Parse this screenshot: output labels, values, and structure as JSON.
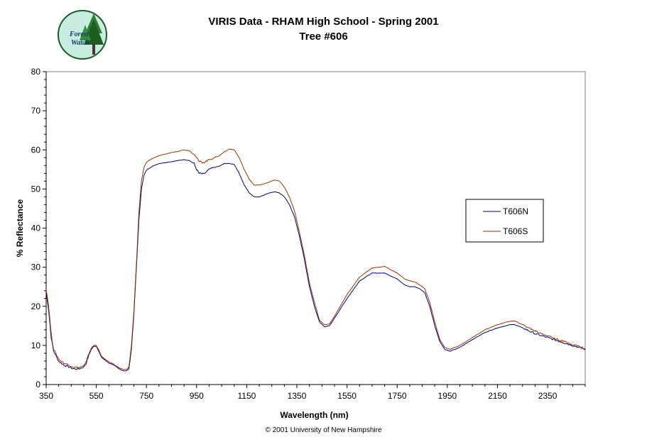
{
  "logo": {
    "line1": "Forest",
    "line2": "Watch"
  },
  "title_line1": "VIRIS Data -  RHAM High School - Spring 2001",
  "title_line2": "Tree #606",
  "copyright": "© 2001 University of New Hampshire",
  "chart_data": {
    "type": "line",
    "title": "VIRIS Data -  RHAM High School - Spring 2001",
    "subtitle": "Tree #606",
    "xlabel": "Wavelength (nm)",
    "ylabel": "% Reflectance",
    "xlim": [
      350,
      2500
    ],
    "ylim": [
      0,
      80
    ],
    "xticks": [
      350,
      550,
      750,
      950,
      1150,
      1350,
      1550,
      1750,
      1950,
      2150,
      2350
    ],
    "yticks": [
      0,
      10,
      20,
      30,
      40,
      50,
      60,
      70,
      80
    ],
    "grid": false,
    "legend": "right",
    "series": [
      {
        "name": "T606N",
        "color": "#000080",
        "x": [
          350,
          360,
          370,
          380,
          400,
          420,
          440,
          460,
          480,
          500,
          510,
          520,
          530,
          540,
          550,
          560,
          570,
          580,
          600,
          620,
          640,
          660,
          670,
          680,
          690,
          700,
          710,
          720,
          730,
          740,
          750,
          760,
          780,
          800,
          850,
          900,
          920,
          940,
          950,
          960,
          980,
          1000,
          1020,
          1040,
          1060,
          1080,
          1100,
          1120,
          1140,
          1160,
          1180,
          1200,
          1220,
          1240,
          1260,
          1280,
          1300,
          1320,
          1340,
          1360,
          1380,
          1400,
          1420,
          1440,
          1460,
          1480,
          1500,
          1550,
          1600,
          1650,
          1700,
          1750,
          1780,
          1800,
          1820,
          1840,
          1860,
          1880,
          1900,
          1920,
          1940,
          1960,
          1980,
          2000,
          2050,
          2100,
          2150,
          2200,
          2220,
          2250,
          2300,
          2350,
          2400,
          2450,
          2500
        ],
        "y": [
          23.5,
          19,
          12,
          8.5,
          6,
          5,
          4.5,
          4,
          4,
          4.5,
          5.5,
          7.5,
          9,
          9.8,
          9.8,
          8.5,
          7,
          6.5,
          5.5,
          5,
          4,
          3.5,
          3.5,
          4,
          9,
          18,
          30,
          42,
          50,
          53.5,
          54.8,
          55.3,
          56,
          56.5,
          57,
          57.5,
          57.3,
          56.5,
          55,
          54,
          53.8,
          55,
          55.5,
          55.8,
          56.5,
          56.5,
          56.3,
          54,
          51,
          49,
          48,
          48,
          48.5,
          49,
          49.3,
          49,
          48,
          46,
          43,
          38,
          32,
          25,
          20,
          16,
          14.8,
          15,
          17,
          22,
          26.5,
          28.5,
          28.5,
          27,
          25.5,
          25,
          25,
          24.5,
          23.5,
          20,
          15,
          11,
          9,
          8.5,
          9,
          9.5,
          11.5,
          13.3,
          14.5,
          15.3,
          15.3,
          14.5,
          13,
          12,
          11,
          10,
          9
        ]
      },
      {
        "name": "T606S",
        "color": "#993300",
        "x": [
          350,
          360,
          370,
          380,
          400,
          420,
          440,
          460,
          480,
          500,
          510,
          520,
          530,
          540,
          550,
          560,
          570,
          580,
          600,
          620,
          640,
          660,
          670,
          680,
          690,
          700,
          710,
          720,
          730,
          740,
          750,
          760,
          780,
          800,
          850,
          900,
          920,
          940,
          950,
          960,
          980,
          1000,
          1020,
          1040,
          1060,
          1080,
          1100,
          1120,
          1140,
          1160,
          1180,
          1200,
          1220,
          1240,
          1260,
          1280,
          1300,
          1320,
          1340,
          1360,
          1380,
          1400,
          1420,
          1440,
          1460,
          1480,
          1500,
          1550,
          1600,
          1650,
          1700,
          1750,
          1780,
          1800,
          1820,
          1840,
          1860,
          1880,
          1900,
          1920,
          1940,
          1960,
          1980,
          2000,
          2050,
          2100,
          2150,
          2200,
          2220,
          2250,
          2300,
          2350,
          2400,
          2450,
          2500
        ],
        "y": [
          24.5,
          20,
          13,
          9,
          6.5,
          5.5,
          5,
          4.5,
          4.3,
          4.8,
          5.8,
          7.8,
          9.3,
          10,
          10,
          8.8,
          7.3,
          6.7,
          5.8,
          5.2,
          4.3,
          3.8,
          3.8,
          4.5,
          10,
          19,
          31,
          44,
          52,
          55.5,
          56.8,
          57.3,
          58,
          58.5,
          59.3,
          60,
          59.8,
          59,
          58,
          57,
          56.8,
          57.5,
          58,
          58.5,
          59.5,
          60.2,
          60,
          58,
          55,
          52.5,
          51,
          51,
          51.3,
          51.8,
          52.3,
          52,
          50.5,
          48,
          44.5,
          39,
          33,
          26,
          21,
          16.5,
          15.3,
          15.5,
          17.5,
          23,
          27.5,
          29.8,
          30.2,
          28.5,
          27,
          26.5,
          26.2,
          25.5,
          24.5,
          21,
          16,
          11.5,
          9.5,
          9,
          9.5,
          10,
          12,
          14,
          15.3,
          16.2,
          16.2,
          15.3,
          13.7,
          12.5,
          11.3,
          10.3,
          9.2
        ]
      }
    ]
  }
}
